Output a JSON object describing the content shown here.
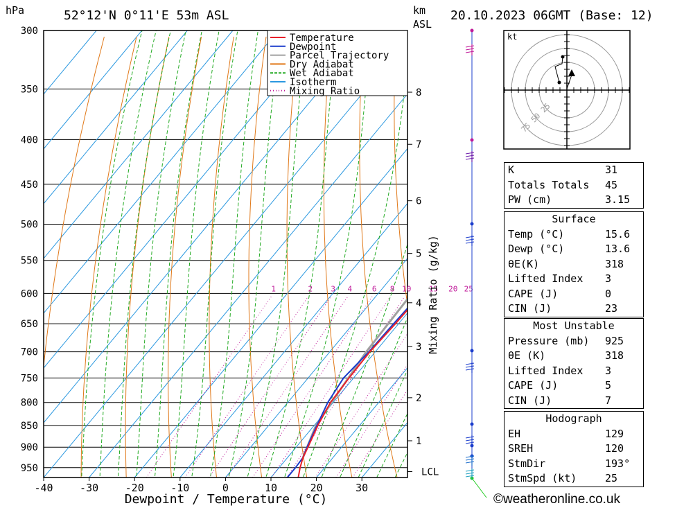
{
  "header": {
    "pressure_unit": "hPa",
    "location": "52°12'N  0°11'E  53m  ASL",
    "km_unit": "km",
    "asl_unit": "ASL",
    "datetime": "20.10.2023  06GMT  (Base: 12)"
  },
  "chart_data": {
    "type": "line",
    "chart_kind": "skew-T log-P",
    "xlabel": "Dewpoint / Temperature (°C)",
    "ylabel_left": "hPa",
    "ylabel_right": "Mixing Ratio (g/kg)",
    "pressure_range": [
      975,
      300
    ],
    "temperature_range": [
      -40,
      40
    ],
    "pressure_ticks": [
      300,
      350,
      400,
      450,
      500,
      550,
      600,
      650,
      700,
      750,
      800,
      850,
      900,
      950
    ],
    "temperature_ticks": [
      -40,
      -30,
      -20,
      -10,
      0,
      10,
      20,
      30
    ],
    "km_ticks": [
      {
        "km": "8",
        "p": 353
      },
      {
        "km": "7",
        "p": 405
      },
      {
        "km": "6",
        "p": 470
      },
      {
        "km": "5",
        "p": 540
      },
      {
        "km": "4",
        "p": 615
      },
      {
        "km": "3",
        "p": 690
      },
      {
        "km": "2",
        "p": 790
      },
      {
        "km": "1",
        "p": 885
      },
      {
        "km": "LCL",
        "p": 960
      }
    ],
    "mixing_ratio_labels": [
      "1",
      "2",
      "3",
      "4",
      "6",
      "8",
      "10",
      "15",
      "20",
      "25"
    ],
    "legend": [
      "Temperature",
      "Dewpoint",
      "Parcel Trajectory",
      "Dry Adiabat",
      "Wet Adiabat",
      "Isotherm",
      "Mixing Ratio"
    ],
    "legend_position": "top-right",
    "colors": {
      "temperature": "#e8202a",
      "dewpoint": "#1a3ccc",
      "parcel": "#a0a0a0",
      "dry_adiabat": "#e07818",
      "wet_adiabat": "#22aa22",
      "isotherm": "#2a98e0",
      "mixing_ratio": "#c01a9a"
    },
    "temperature_profile": [
      {
        "p": 975,
        "t": 16.0
      },
      {
        "p": 950,
        "t": 14.6
      },
      {
        "p": 925,
        "t": 13.4
      },
      {
        "p": 900,
        "t": 12.6
      },
      {
        "p": 850,
        "t": 10.8
      },
      {
        "p": 800,
        "t": 9.4
      },
      {
        "p": 750,
        "t": 9.0
      },
      {
        "p": 700,
        "t": 8.8
      },
      {
        "p": 650,
        "t": 9.3
      },
      {
        "p": 600,
        "t": 9.6
      },
      {
        "p": 550,
        "t": 10.4
      },
      {
        "p": 500,
        "t": 11.6
      },
      {
        "p": 450,
        "t": 12.8
      },
      {
        "p": 400,
        "t": 14.2
      },
      {
        "p": 350,
        "t": 12.6
      },
      {
        "p": 300,
        "t": 8.5
      }
    ],
    "dewpoint_profile": [
      {
        "p": 975,
        "t": 13.6
      },
      {
        "p": 950,
        "t": 13.6
      },
      {
        "p": 925,
        "t": 13.4
      },
      {
        "p": 900,
        "t": 12.4
      },
      {
        "p": 850,
        "t": 10.6
      },
      {
        "p": 800,
        "t": 8.8
      },
      {
        "p": 750,
        "t": 7.8
      },
      {
        "p": 700,
        "t": 8.6
      },
      {
        "p": 650,
        "t": 8.9
      },
      {
        "p": 600,
        "t": 9.4
      },
      {
        "p": 550,
        "t": 10.0
      },
      {
        "p": 500,
        "t": 11.2
      },
      {
        "p": 450,
        "t": 12.6
      },
      {
        "p": 400,
        "t": 13.0
      },
      {
        "p": 350,
        "t": 9.8
      },
      {
        "p": 300,
        "t": 4.0
      }
    ],
    "parcel_profile": [
      {
        "p": 925,
        "t": 13.4
      },
      {
        "p": 850,
        "t": 10.4
      },
      {
        "p": 700,
        "t": 8.0
      },
      {
        "p": 600,
        "t": 7.4
      },
      {
        "p": 500,
        "t": 5.6
      },
      {
        "p": 400,
        "t": 2.0
      },
      {
        "p": 300,
        "t": -4.5
      }
    ]
  },
  "hodograph": {
    "unit": "kt",
    "ring_labels": [
      "25",
      "50",
      "75"
    ]
  },
  "indices": {
    "rows": [
      {
        "k": "K",
        "v": "31"
      },
      {
        "k": "Totals Totals",
        "v": "45"
      },
      {
        "k": "PW (cm)",
        "v": "3.15"
      }
    ]
  },
  "surface": {
    "title": "Surface",
    "rows": [
      {
        "k": "Temp (°C)",
        "v": "15.6"
      },
      {
        "k": "Dewp (°C)",
        "v": "13.6"
      },
      {
        "k": "θE(K)",
        "v": "318"
      },
      {
        "k": "Lifted Index",
        "v": "3"
      },
      {
        "k": "CAPE (J)",
        "v": "0"
      },
      {
        "k": "CIN (J)",
        "v": "23"
      }
    ]
  },
  "most_unstable": {
    "title": "Most Unstable",
    "rows": [
      {
        "k": "Pressure (mb)",
        "v": "925"
      },
      {
        "k": "θE (K)",
        "v": "318"
      },
      {
        "k": "Lifted Index",
        "v": "3"
      },
      {
        "k": "CAPE (J)",
        "v": "5"
      },
      {
        "k": "CIN (J)",
        "v": "7"
      }
    ]
  },
  "hodo_params": {
    "title": "Hodograph",
    "rows": [
      {
        "k": "EH",
        "v": "129"
      },
      {
        "k": "SREH",
        "v": "120"
      },
      {
        "k": "StmDir",
        "v": "193°"
      },
      {
        "k": "StmSpd (kt)",
        "v": "25"
      }
    ]
  },
  "footer": {
    "copyright": "©weatheronline.co.uk"
  }
}
